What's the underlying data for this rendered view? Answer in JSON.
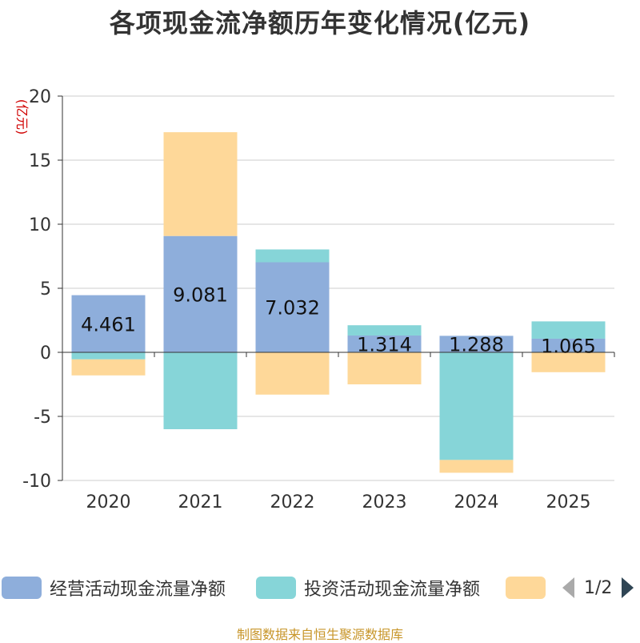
{
  "title": "各项现金流净额历年变化情况(亿元)",
  "footer": "制图数据来自恒生聚源数据库",
  "pager": {
    "text": "1/2",
    "prev_icon": "triangle-left-icon",
    "next_icon": "triangle-right-icon"
  },
  "colors": {
    "operating": "#8eaedb",
    "investing": "#86d5d8",
    "financing": "#fed899",
    "grid": "#cccccc",
    "axis": "#333333",
    "unit": "#d00000",
    "text": "#333333"
  },
  "chart_data": {
    "type": "bar",
    "stacked": true,
    "title": "各项现金流净额历年变化情况(亿元)",
    "ylabel": "(亿元)",
    "ylim": [
      -10,
      20
    ],
    "yticks": [
      -10,
      -5,
      0,
      5,
      10,
      15,
      20
    ],
    "categories": [
      "2020",
      "2021",
      "2022",
      "2023",
      "2024",
      "2025"
    ],
    "series": [
      {
        "name": "经营活动现金流量净额",
        "color": "#8eaedb",
        "values": [
          4.461,
          9.081,
          7.032,
          1.314,
          1.288,
          1.065
        ],
        "labels": [
          "4.461",
          "9.081",
          "7.032",
          "1.314",
          "1.288",
          "1.065"
        ]
      },
      {
        "name": "投资活动现金流量净额",
        "color": "#86d5d8",
        "values": [
          -0.55,
          -6.0,
          1.0,
          0.8,
          -8.4,
          1.35
        ]
      },
      {
        "name": "",
        "color": "#fed899",
        "values": [
          -1.25,
          8.1,
          -3.3,
          -2.5,
          -1.0,
          -1.55
        ]
      }
    ]
  }
}
